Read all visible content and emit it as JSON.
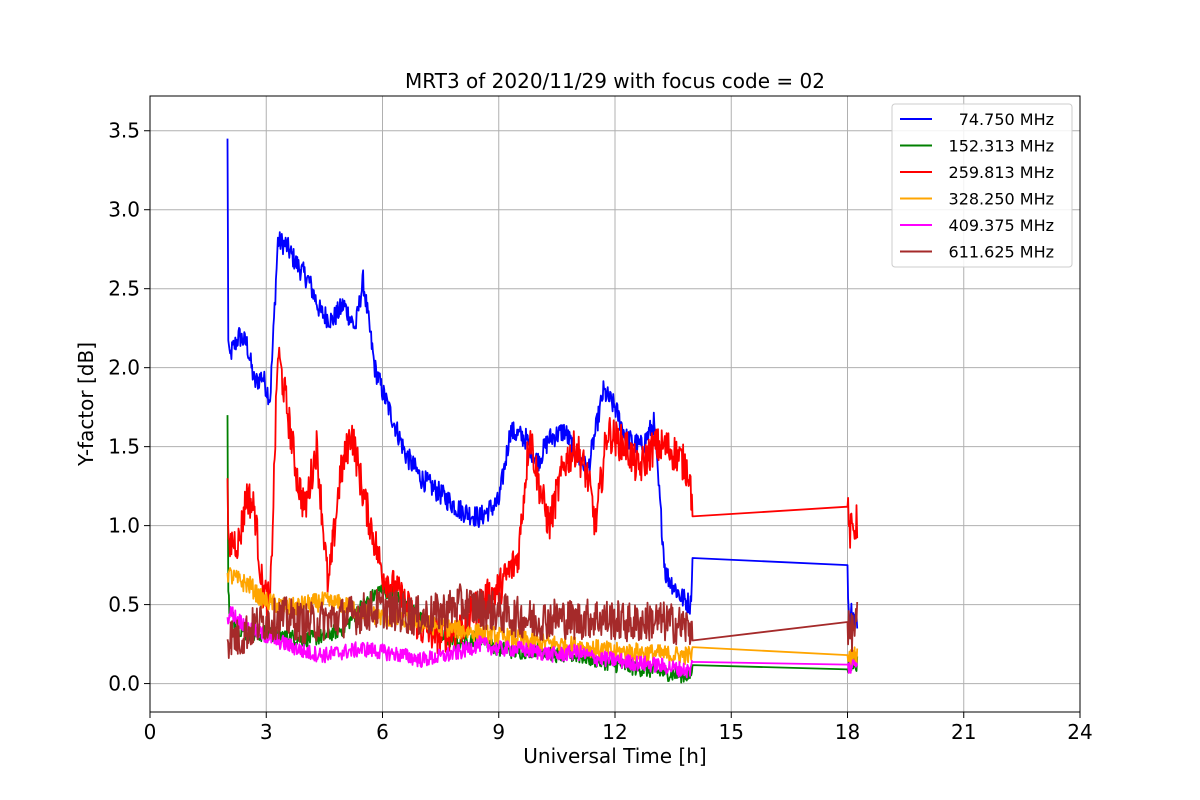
{
  "chart_data": {
    "type": "line",
    "title": "MRT3 of 2020/11/29 with focus code = 02",
    "xlabel": "Universal Time [h]",
    "ylabel": "Y-factor [dB]",
    "xlim": [
      0,
      24
    ],
    "ylim": [
      -0.18,
      3.72
    ],
    "xticks": [
      0,
      3,
      6,
      9,
      12,
      15,
      18,
      21,
      24
    ],
    "yticks": [
      0.0,
      0.5,
      1.0,
      1.5,
      2.0,
      2.5,
      3.0,
      3.5
    ],
    "xtick_labels": [
      "0",
      "3",
      "6",
      "9",
      "12",
      "15",
      "18",
      "21",
      "24"
    ],
    "ytick_labels": [
      "0.0",
      "0.5",
      "1.0",
      "1.5",
      "2.0",
      "2.5",
      "3.0",
      "3.5"
    ],
    "grid": true,
    "legend_position": "top-right",
    "series": [
      {
        "name": "74.750 MHz",
        "color": "#0000ff",
        "noise": 0.07,
        "x": [
          2.0,
          2.02,
          2.05,
          2.1,
          2.3,
          2.5,
          2.7,
          2.9,
          3.1,
          3.3,
          3.5,
          3.8,
          4.1,
          4.4,
          4.7,
          5.0,
          5.3,
          5.5,
          5.8,
          6.0,
          6.3,
          6.6,
          7.0,
          7.5,
          8.0,
          8.5,
          9.0,
          9.3,
          9.7,
          10.0,
          10.3,
          10.7,
          11.0,
          11.3,
          11.7,
          12.0,
          12.3,
          12.7,
          13.0,
          13.3,
          13.7,
          13.95,
          14.0,
          18.0,
          18.05,
          18.1,
          18.25
        ],
        "y": [
          3.45,
          2.2,
          2.05,
          2.1,
          2.2,
          2.15,
          1.9,
          1.95,
          1.8,
          2.8,
          2.78,
          2.65,
          2.55,
          2.35,
          2.3,
          2.4,
          2.25,
          2.55,
          2.0,
          1.85,
          1.65,
          1.45,
          1.3,
          1.2,
          1.1,
          1.05,
          1.15,
          1.6,
          1.55,
          1.4,
          1.55,
          1.6,
          1.45,
          1.35,
          1.85,
          1.75,
          1.55,
          1.5,
          1.65,
          0.7,
          0.55,
          0.5,
          0.77,
          0.75,
          0.3,
          0.45,
          0.4
        ]
      },
      {
        "name": "152.313 MHz",
        "color": "#008000",
        "noise": 0.05,
        "x": [
          2.0,
          2.02,
          2.05,
          2.3,
          2.6,
          3.0,
          3.5,
          4.0,
          4.5,
          5.0,
          5.5,
          6.0,
          6.5,
          7.0,
          7.5,
          8.0,
          8.5,
          9.0,
          9.5,
          10.0,
          10.5,
          11.0,
          11.5,
          12.0,
          12.5,
          13.0,
          13.5,
          13.95,
          14.0,
          18.0,
          18.05,
          18.25
        ],
        "y": [
          1.7,
          0.6,
          0.45,
          0.35,
          0.3,
          0.32,
          0.3,
          0.28,
          0.3,
          0.35,
          0.5,
          0.6,
          0.55,
          0.4,
          0.3,
          0.25,
          0.3,
          0.22,
          0.2,
          0.22,
          0.18,
          0.18,
          0.15,
          0.12,
          0.1,
          0.08,
          0.06,
          0.05,
          0.1,
          0.09,
          0.12,
          0.13
        ]
      },
      {
        "name": "259.813 MHz",
        "color": "#ff0000",
        "noise": 0.12,
        "x": [
          2.0,
          2.03,
          2.1,
          2.3,
          2.5,
          2.7,
          2.9,
          3.1,
          3.3,
          3.5,
          3.8,
          4.0,
          4.3,
          4.6,
          4.9,
          5.2,
          5.5,
          5.8,
          6.0,
          6.3,
          6.6,
          7.0,
          7.5,
          8.0,
          8.5,
          9.0,
          9.5,
          9.8,
          10.0,
          10.3,
          10.7,
          11.0,
          11.3,
          11.5,
          11.8,
          12.0,
          12.3,
          12.6,
          13.0,
          13.3,
          13.6,
          13.9,
          14.0,
          18.0,
          18.05,
          18.25
        ],
        "y": [
          1.3,
          0.8,
          0.9,
          0.9,
          1.2,
          1.1,
          0.6,
          0.5,
          2.1,
          1.8,
          1.3,
          1.1,
          1.5,
          0.6,
          1.3,
          1.6,
          1.2,
          0.9,
          0.7,
          0.6,
          0.5,
          0.35,
          0.3,
          0.35,
          0.5,
          0.6,
          0.8,
          1.6,
          1.3,
          1.0,
          1.4,
          1.5,
          1.3,
          1.0,
          1.6,
          1.55,
          1.5,
          1.35,
          1.5,
          1.5,
          1.45,
          1.35,
          1.14,
          1.12,
          0.95,
          1.02
        ]
      },
      {
        "name": "328.250 MHz",
        "color": "#ffa500",
        "noise": 0.06,
        "x": [
          2.0,
          2.1,
          2.3,
          2.6,
          2.8,
          3.0,
          3.3,
          3.6,
          4.0,
          4.5,
          5.0,
          5.5,
          6.0,
          6.5,
          7.0,
          7.5,
          8.0,
          8.5,
          9.0,
          9.5,
          10.0,
          10.5,
          11.0,
          11.5,
          12.0,
          12.5,
          13.0,
          13.5,
          13.95,
          14.0,
          18.0,
          18.05,
          18.25
        ],
        "y": [
          0.7,
          0.68,
          0.65,
          0.62,
          0.55,
          0.52,
          0.5,
          0.48,
          0.5,
          0.52,
          0.5,
          0.45,
          0.42,
          0.4,
          0.38,
          0.36,
          0.34,
          0.32,
          0.3,
          0.28,
          0.26,
          0.25,
          0.24,
          0.22,
          0.2,
          0.2,
          0.19,
          0.18,
          0.18,
          0.18,
          0.18,
          0.17,
          0.18
        ]
      },
      {
        "name": "409.375 MHz",
        "color": "#ff00ff",
        "noise": 0.05,
        "x": [
          2.0,
          2.1,
          2.3,
          2.6,
          3.0,
          3.5,
          4.0,
          4.5,
          5.0,
          5.5,
          6.0,
          6.5,
          7.0,
          7.5,
          8.0,
          8.5,
          9.0,
          9.5,
          10.0,
          10.5,
          11.0,
          11.5,
          12.0,
          12.5,
          13.0,
          13.5,
          13.95,
          14.0,
          18.0,
          18.05,
          18.25
        ],
        "y": [
          0.42,
          0.45,
          0.4,
          0.35,
          0.3,
          0.25,
          0.2,
          0.18,
          0.2,
          0.22,
          0.2,
          0.18,
          0.15,
          0.17,
          0.2,
          0.25,
          0.22,
          0.22,
          0.2,
          0.18,
          0.2,
          0.16,
          0.15,
          0.13,
          0.12,
          0.1,
          0.08,
          0.13,
          0.12,
          0.1,
          0.14
        ]
      },
      {
        "name": "611.625 MHz",
        "color": "#a52a2a",
        "noise": 0.13,
        "x": [
          2.0,
          2.1,
          2.3,
          2.6,
          3.0,
          3.5,
          4.0,
          4.5,
          5.0,
          5.5,
          6.0,
          6.5,
          7.0,
          7.5,
          8.0,
          8.5,
          9.0,
          9.5,
          10.0,
          10.5,
          11.0,
          11.5,
          12.0,
          12.5,
          13.0,
          13.5,
          13.95,
          14.0,
          18.0,
          18.05,
          18.25
        ],
        "y": [
          0.28,
          0.3,
          0.28,
          0.35,
          0.4,
          0.42,
          0.38,
          0.4,
          0.42,
          0.45,
          0.48,
          0.45,
          0.42,
          0.45,
          0.5,
          0.48,
          0.45,
          0.42,
          0.4,
          0.42,
          0.4,
          0.42,
          0.4,
          0.38,
          0.4,
          0.38,
          0.35,
          0.38,
          0.39,
          0.3,
          0.4
        ]
      }
    ]
  }
}
